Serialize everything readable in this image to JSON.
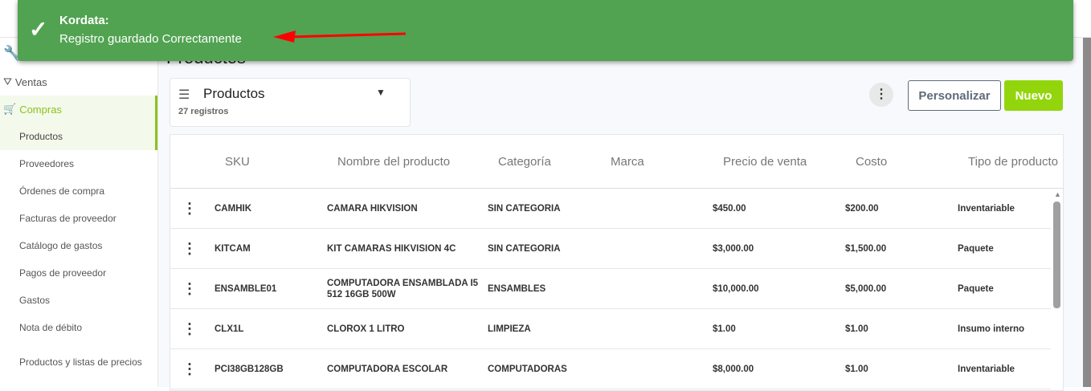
{
  "toast": {
    "title": "Kordata:",
    "message": "Registro guardado Correctamente",
    "color": "#51a351",
    "annotation_arrow_color": "#ff0000"
  },
  "sidebar": {
    "items": [
      {
        "label": "Ventas",
        "icon": "funnel-dollar-icon"
      },
      {
        "label": "Compras",
        "icon": "cart-icon",
        "active": true
      }
    ],
    "subitems": [
      "Productos",
      "Proveedores",
      "Órdenes de compra",
      "Facturas de proveedor",
      "Catálogo de gastos",
      "Pagos de proveedor",
      "Gastos",
      "Nota de débito",
      "Productos y listas de precios"
    ]
  },
  "main": {
    "title": "Productos",
    "view": {
      "name": "Productos",
      "count": "27 registros"
    },
    "buttons": {
      "customize": "Personalizar",
      "new": "Nuevo"
    },
    "accent": "#93d50c",
    "columns": [
      "SKU",
      "Nombre del producto",
      "Categoría",
      "Marca",
      "Precio de venta",
      "Costo",
      "Tipo de producto"
    ],
    "rows": [
      {
        "sku": "CAMHIK",
        "name": "CAMARA HIKVISION",
        "category": "SIN CATEGORIA",
        "brand": "",
        "price": "$450.00",
        "cost": "$200.00",
        "type": "Inventariable"
      },
      {
        "sku": "KITCAM",
        "name": "KIT CAMARAS HIKVISION 4C",
        "category": "SIN CATEGORIA",
        "brand": "",
        "price": "$3,000.00",
        "cost": "$1,500.00",
        "type": "Paquete"
      },
      {
        "sku": "ENSAMBLE01",
        "name": "COMPUTADORA ENSAMBLADA I5 512 16GB 500W",
        "category": "ENSAMBLES",
        "brand": "",
        "price": "$10,000.00",
        "cost": "$5,000.00",
        "type": "Paquete"
      },
      {
        "sku": "CLX1L",
        "name": "CLOROX 1 LITRO",
        "category": "LIMPIEZA",
        "brand": "",
        "price": "$1.00",
        "cost": "$1.00",
        "type": "Insumo interno"
      },
      {
        "sku": "PCI38GB128GB",
        "name": "COMPUTADORA ESCOLAR",
        "category": "COMPUTADORAS",
        "brand": "",
        "price": "$8,000.00",
        "cost": "$1.00",
        "type": "Inventariable"
      }
    ]
  }
}
